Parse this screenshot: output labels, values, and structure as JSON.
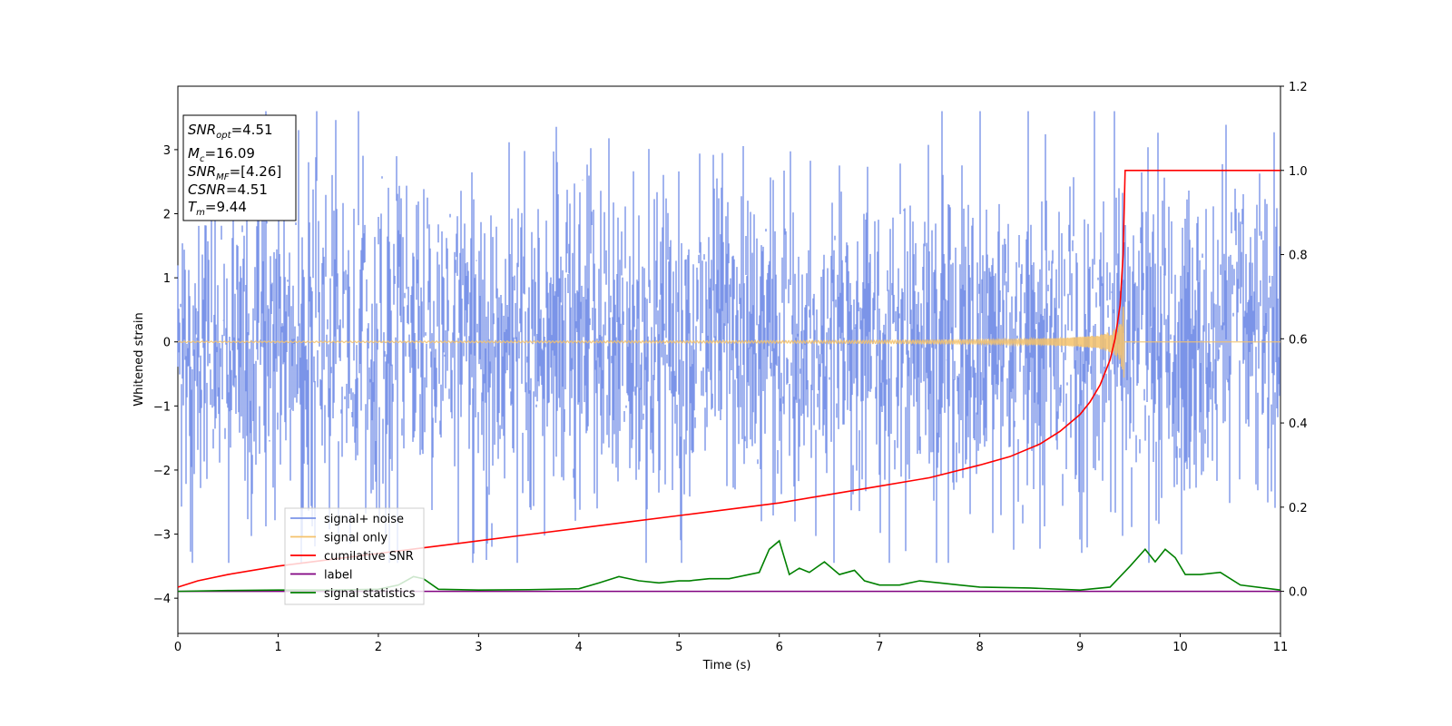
{
  "chart_data": {
    "type": "line",
    "xlabel": "Time (s)",
    "ylabel": "Whitened strain",
    "xlim": [
      0,
      11
    ],
    "ylim": [
      -4.55,
      3.99
    ],
    "y2lim": [
      -0.1,
      1.2
    ],
    "x_ticks": [
      0,
      1,
      2,
      3,
      4,
      5,
      6,
      7,
      8,
      9,
      10,
      11
    ],
    "y_ticks": [
      -4,
      -3,
      -2,
      -1,
      0,
      1,
      2,
      3
    ],
    "y2_ticks": [
      0.0,
      0.2,
      0.4,
      0.6,
      0.8,
      1.0,
      1.2
    ],
    "legend_position": "lower-left",
    "series": [
      {
        "name": "signal+ noise",
        "axis": "left",
        "color": "#7b94e8",
        "description_values": {
          "noise_std": 0.78,
          "peak_max": 3.6,
          "peak_min": -3.45
        }
      },
      {
        "name": "signal only",
        "axis": "left",
        "color": "#f5c26b",
        "chirp_start": 0,
        "chirp_merger": 9.44,
        "merger_amplitude": 0.7
      },
      {
        "name": "cumilative SNR",
        "axis": "right",
        "x": [
          0,
          0.2,
          0.5,
          1,
          1.5,
          2,
          2.5,
          3,
          3.5,
          4,
          4.5,
          5,
          5.5,
          6,
          6.5,
          7,
          7.5,
          8,
          8.3,
          8.6,
          8.8,
          9.0,
          9.1,
          9.2,
          9.3,
          9.35,
          9.4,
          9.43,
          9.45,
          9.5,
          10,
          10.5,
          11
        ],
        "y": [
          0.01,
          0.025,
          0.04,
          0.06,
          0.075,
          0.09,
          0.105,
          0.12,
          0.135,
          0.15,
          0.165,
          0.18,
          0.195,
          0.21,
          0.23,
          0.25,
          0.27,
          0.3,
          0.32,
          0.35,
          0.38,
          0.42,
          0.45,
          0.49,
          0.55,
          0.6,
          0.68,
          0.8,
          1.0,
          1.0,
          1.0,
          1.0,
          1.0
        ]
      },
      {
        "name": "label",
        "axis": "right",
        "x": [
          0,
          11
        ],
        "y": [
          0,
          0
        ]
      },
      {
        "name": "signal statistics",
        "axis": "right",
        "x": [
          0,
          0.5,
          1,
          1.5,
          2,
          2.2,
          2.35,
          2.45,
          2.6,
          3,
          3.5,
          4,
          4.2,
          4.4,
          4.6,
          4.8,
          5,
          5.1,
          5.3,
          5.5,
          5.7,
          5.8,
          5.9,
          6.0,
          6.1,
          6.2,
          6.3,
          6.45,
          6.6,
          6.75,
          6.85,
          7,
          7.2,
          7.4,
          7.6,
          7.8,
          8,
          8.5,
          9,
          9.3,
          9.5,
          9.65,
          9.75,
          9.85,
          9.95,
          10.05,
          10.2,
          10.4,
          10.6,
          11
        ],
        "y": [
          0.0,
          0.002,
          0.003,
          0.003,
          0.005,
          0.015,
          0.035,
          0.03,
          0.005,
          0.003,
          0.004,
          0.006,
          0.02,
          0.035,
          0.025,
          0.02,
          0.025,
          0.025,
          0.03,
          0.03,
          0.04,
          0.045,
          0.1,
          0.12,
          0.04,
          0.055,
          0.045,
          0.07,
          0.04,
          0.05,
          0.025,
          0.015,
          0.015,
          0.025,
          0.02,
          0.015,
          0.01,
          0.008,
          0.003,
          0.01,
          0.06,
          0.1,
          0.07,
          0.1,
          0.08,
          0.04,
          0.04,
          0.045,
          0.015,
          0.003
        ]
      }
    ]
  },
  "info_box": {
    "snr_opt_label": "SNR",
    "snr_opt_sub": "opt",
    "snr_opt_value": "=4.51",
    "mc_label": "M",
    "mc_sub": "c",
    "mc_value": "=16.09",
    "snr_mf_label": "SNR",
    "snr_mf_sub": "MF",
    "snr_mf_value": "=[4.26]",
    "csnr_label": "CSNR",
    "csnr_value": "=4.51",
    "tm_label": "T",
    "tm_sub": "m",
    "tm_value": "=9.44"
  },
  "colors": {
    "noise": "#7b94e8",
    "signal": "#f5c26b",
    "cumulative_snr": "#ff0000",
    "label": "#800080",
    "statistics": "#008000"
  }
}
